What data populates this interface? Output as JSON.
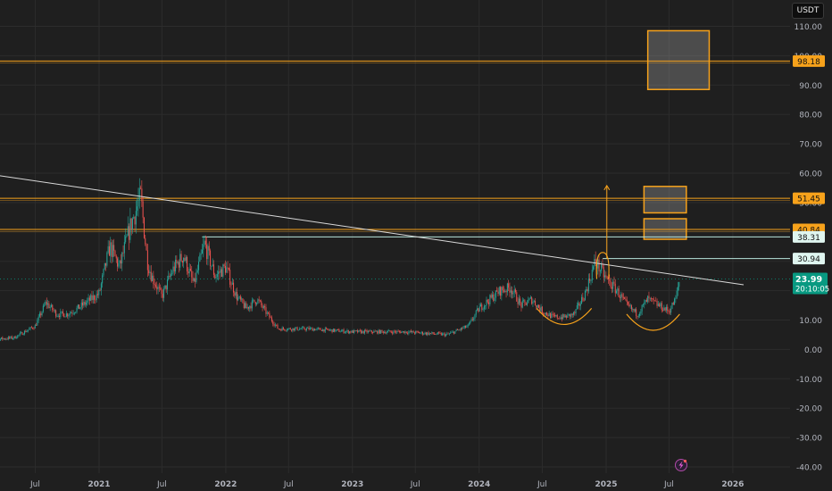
{
  "currency_label": "USDT",
  "colors": {
    "background": "#1f1f1f",
    "grid": "#2c2c2c",
    "axis_text": "#b2b5be",
    "trendline": "#d9d9d9",
    "orange": "#f7a21b",
    "teal_line": "#b8e6dc",
    "price_badge": "#089981",
    "candle_up": "#26a69a",
    "candle_down": "#ef5350"
  },
  "chart_data": {
    "type": "candlestick",
    "title": "",
    "xlabel": "",
    "ylabel": "",
    "ylim": [
      -40,
      115
    ],
    "y_ticks": [
      "110.00",
      "100.00",
      "90.00",
      "80.00",
      "70.00",
      "60.00",
      "50.00",
      "40.00",
      "30.00",
      "20.00",
      "10.00",
      "0.00",
      "-10.00",
      "-20.00",
      "-30.00",
      "-40.00"
    ],
    "x_ticks": [
      {
        "label": "Jul",
        "date": "2020-07"
      },
      {
        "label": "2021",
        "date": "2021-01"
      },
      {
        "label": "Jul",
        "date": "2021-07"
      },
      {
        "label": "2022",
        "date": "2022-01"
      },
      {
        "label": "Jul",
        "date": "2022-07"
      },
      {
        "label": "2023",
        "date": "2023-01"
      },
      {
        "label": "Jul",
        "date": "2023-07"
      },
      {
        "label": "2024",
        "date": "2024-01"
      },
      {
        "label": "Jul",
        "date": "2024-07"
      },
      {
        "label": "2025",
        "date": "2025-01"
      },
      {
        "label": "Jul",
        "date": "2025-07"
      },
      {
        "label": "2026",
        "date": "2026-01"
      }
    ],
    "price_path": [
      {
        "date": "2020-02",
        "price": 3
      },
      {
        "date": "2020-05",
        "price": 4
      },
      {
        "date": "2020-07",
        "price": 8
      },
      {
        "date": "2020-08",
        "price": 16
      },
      {
        "date": "2020-09",
        "price": 12
      },
      {
        "date": "2020-10",
        "price": 12
      },
      {
        "date": "2020-11",
        "price": 14
      },
      {
        "date": "2021-01",
        "price": 19
      },
      {
        "date": "2021-02",
        "price": 35
      },
      {
        "date": "2021-03",
        "price": 28
      },
      {
        "date": "2021-04",
        "price": 42
      },
      {
        "date": "2021-05",
        "price": 52
      },
      {
        "date": "2021-05-20",
        "price": 30
      },
      {
        "date": "2021-06",
        "price": 25
      },
      {
        "date": "2021-07",
        "price": 18
      },
      {
        "date": "2021-08",
        "price": 27
      },
      {
        "date": "2021-09",
        "price": 32
      },
      {
        "date": "2021-10",
        "price": 22
      },
      {
        "date": "2021-11",
        "price": 36
      },
      {
        "date": "2021-12",
        "price": 25
      },
      {
        "date": "2022-01",
        "price": 28
      },
      {
        "date": "2022-02",
        "price": 18
      },
      {
        "date": "2022-03",
        "price": 14
      },
      {
        "date": "2022-04",
        "price": 17
      },
      {
        "date": "2022-05",
        "price": 12
      },
      {
        "date": "2022-06",
        "price": 7
      },
      {
        "date": "2022-09",
        "price": 7
      },
      {
        "date": "2023-01",
        "price": 6
      },
      {
        "date": "2023-06",
        "price": 6
      },
      {
        "date": "2023-10",
        "price": 5
      },
      {
        "date": "2023-12",
        "price": 8
      },
      {
        "date": "2024-01",
        "price": 14
      },
      {
        "date": "2024-02",
        "price": 17
      },
      {
        "date": "2024-03",
        "price": 20
      },
      {
        "date": "2024-04",
        "price": 21
      },
      {
        "date": "2024-05",
        "price": 15
      },
      {
        "date": "2024-06",
        "price": 17
      },
      {
        "date": "2024-07",
        "price": 13
      },
      {
        "date": "2024-08",
        "price": 11
      },
      {
        "date": "2024-09",
        "price": 11
      },
      {
        "date": "2024-10",
        "price": 12
      },
      {
        "date": "2024-11",
        "price": 19
      },
      {
        "date": "2024-12",
        "price": 30
      },
      {
        "date": "2025-01",
        "price": 24
      },
      {
        "date": "2025-02",
        "price": 20
      },
      {
        "date": "2025-03",
        "price": 15
      },
      {
        "date": "2025-04",
        "price": 12
      },
      {
        "date": "2025-05",
        "price": 17
      },
      {
        "date": "2025-06",
        "price": 15
      },
      {
        "date": "2025-07",
        "price": 13
      },
      {
        "date": "2025-07-20",
        "price": 17
      },
      {
        "date": "2025-08",
        "price": 24
      }
    ],
    "horizontal_levels": [
      {
        "label": "98.18",
        "value": 98.18,
        "style": "orange"
      },
      {
        "label": "51.45",
        "value": 51.45,
        "style": "orange"
      },
      {
        "label": "40.84",
        "value": 40.84,
        "style": "orange"
      },
      {
        "label": "38.31",
        "value": 38.31,
        "style": "teal"
      },
      {
        "label": "30.94",
        "value": 30.94,
        "style": "teal"
      }
    ],
    "current_price": {
      "label": "23.99",
      "value": 23.99,
      "countdown": "20:10:05"
    },
    "trendline": [
      {
        "date": "2020-02",
        "price": 60
      },
      {
        "date": "2026-02",
        "price": 22
      }
    ],
    "target_boxes": [
      {
        "date_start": "2025-05-01",
        "date_end": "2025-10-25",
        "price_low": 88.5,
        "price_high": 108.5
      },
      {
        "date_start": "2025-04-20",
        "date_end": "2025-08-20",
        "price_low": 46.5,
        "price_high": 55.5
      },
      {
        "date_start": "2025-04-20",
        "date_end": "2025-08-20",
        "price_low": 37.5,
        "price_high": 44.5
      }
    ],
    "measure_arrow": {
      "date": "2025-01-03",
      "price_from": 30.94,
      "price_to": 55.8
    },
    "cup_arcs": [
      {
        "date_start": "2024-06-15",
        "date_end": "2024-11-20",
        "price_top": 14,
        "price_bottom": 9
      },
      {
        "date_start": "2025-03-01",
        "date_end": "2025-08-01",
        "price_top": 12,
        "price_bottom": 7
      }
    ],
    "handle_arc": {
      "date_start": "2024-12-05",
      "date_end": "2025-01-08",
      "price_low": 24,
      "price_high": 33
    }
  }
}
